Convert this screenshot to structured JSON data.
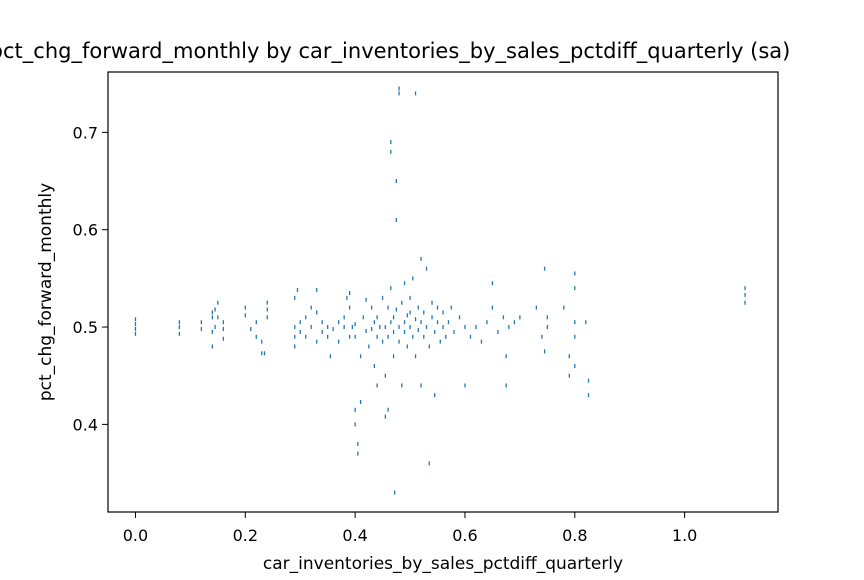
{
  "chart_data": {
    "type": "scatter",
    "title": "pct_chg_forward_monthly by car_inventories_by_sales_pctdiff_quarterly (sa)",
    "xlabel": "car_inventories_by_sales_pctdiff_quarterly",
    "ylabel": "pct_chg_forward_monthly",
    "xlim": [
      -0.05,
      1.17
    ],
    "ylim": [
      0.31,
      0.762
    ],
    "xticks": [
      0.0,
      0.2,
      0.4,
      0.6,
      0.8,
      1.0
    ],
    "xtick_labels": [
      "0.0",
      "0.2",
      "0.4",
      "0.6",
      "0.8",
      "1.0"
    ],
    "yticks": [
      0.4,
      0.5,
      0.6,
      0.7
    ],
    "ytick_labels": [
      "0.4",
      "0.5",
      "0.6",
      "0.7"
    ],
    "grid": false,
    "marker_color": "#1f77b4",
    "points": [
      [
        0.0,
        0.493
      ],
      [
        0.0,
        0.498
      ],
      [
        0.0,
        0.503
      ],
      [
        0.0,
        0.508
      ],
      [
        0.08,
        0.493
      ],
      [
        0.08,
        0.5
      ],
      [
        0.08,
        0.505
      ],
      [
        0.12,
        0.498
      ],
      [
        0.12,
        0.505
      ],
      [
        0.14,
        0.48
      ],
      [
        0.14,
        0.495
      ],
      [
        0.14,
        0.51
      ],
      [
        0.14,
        0.515
      ],
      [
        0.145,
        0.5
      ],
      [
        0.145,
        0.518
      ],
      [
        0.15,
        0.51
      ],
      [
        0.15,
        0.525
      ],
      [
        0.16,
        0.488
      ],
      [
        0.16,
        0.498
      ],
      [
        0.16,
        0.505
      ],
      [
        0.2,
        0.512
      ],
      [
        0.2,
        0.52
      ],
      [
        0.21,
        0.498
      ],
      [
        0.22,
        0.49
      ],
      [
        0.22,
        0.505
      ],
      [
        0.23,
        0.473
      ],
      [
        0.23,
        0.485
      ],
      [
        0.235,
        0.473
      ],
      [
        0.24,
        0.51
      ],
      [
        0.24,
        0.518
      ],
      [
        0.24,
        0.525
      ],
      [
        0.29,
        0.48
      ],
      [
        0.29,
        0.49
      ],
      [
        0.29,
        0.5
      ],
      [
        0.29,
        0.53
      ],
      [
        0.295,
        0.538
      ],
      [
        0.3,
        0.495
      ],
      [
        0.3,
        0.505
      ],
      [
        0.31,
        0.49
      ],
      [
        0.31,
        0.51
      ],
      [
        0.32,
        0.5
      ],
      [
        0.32,
        0.52
      ],
      [
        0.33,
        0.485
      ],
      [
        0.33,
        0.515
      ],
      [
        0.33,
        0.538
      ],
      [
        0.34,
        0.495
      ],
      [
        0.34,
        0.505
      ],
      [
        0.35,
        0.49
      ],
      [
        0.35,
        0.5
      ],
      [
        0.355,
        0.47
      ],
      [
        0.36,
        0.498
      ],
      [
        0.37,
        0.485
      ],
      [
        0.37,
        0.505
      ],
      [
        0.38,
        0.5
      ],
      [
        0.38,
        0.51
      ],
      [
        0.385,
        0.53
      ],
      [
        0.39,
        0.49
      ],
      [
        0.39,
        0.52
      ],
      [
        0.39,
        0.535
      ],
      [
        0.395,
        0.5
      ],
      [
        0.4,
        0.49
      ],
      [
        0.4,
        0.503
      ],
      [
        0.4,
        0.415
      ],
      [
        0.4,
        0.4
      ],
      [
        0.405,
        0.37
      ],
      [
        0.405,
        0.38
      ],
      [
        0.41,
        0.423
      ],
      [
        0.41,
        0.47
      ],
      [
        0.415,
        0.51
      ],
      [
        0.42,
        0.496
      ],
      [
        0.42,
        0.528
      ],
      [
        0.425,
        0.48
      ],
      [
        0.43,
        0.498
      ],
      [
        0.43,
        0.52
      ],
      [
        0.435,
        0.46
      ],
      [
        0.435,
        0.505
      ],
      [
        0.44,
        0.44
      ],
      [
        0.44,
        0.49
      ],
      [
        0.44,
        0.51
      ],
      [
        0.445,
        0.5
      ],
      [
        0.45,
        0.485
      ],
      [
        0.45,
        0.53
      ],
      [
        0.455,
        0.408
      ],
      [
        0.455,
        0.45
      ],
      [
        0.455,
        0.5
      ],
      [
        0.46,
        0.49
      ],
      [
        0.46,
        0.52
      ],
      [
        0.46,
        0.415
      ],
      [
        0.465,
        0.505
      ],
      [
        0.465,
        0.54
      ],
      [
        0.47,
        0.495
      ],
      [
        0.47,
        0.51
      ],
      [
        0.47,
        0.47
      ],
      [
        0.472,
        0.33
      ],
      [
        0.475,
        0.518
      ],
      [
        0.475,
        0.65
      ],
      [
        0.475,
        0.61
      ],
      [
        0.465,
        0.68
      ],
      [
        0.465,
        0.69
      ],
      [
        0.48,
        0.74
      ],
      [
        0.48,
        0.745
      ],
      [
        0.48,
        0.5
      ],
      [
        0.48,
        0.485
      ],
      [
        0.485,
        0.525
      ],
      [
        0.485,
        0.44
      ],
      [
        0.49,
        0.505
      ],
      [
        0.49,
        0.495
      ],
      [
        0.49,
        0.545
      ],
      [
        0.495,
        0.512
      ],
      [
        0.495,
        0.48
      ],
      [
        0.5,
        0.5
      ],
      [
        0.5,
        0.515
      ],
      [
        0.5,
        0.53
      ],
      [
        0.505,
        0.49
      ],
      [
        0.505,
        0.55
      ],
      [
        0.51,
        0.74
      ],
      [
        0.51,
        0.508
      ],
      [
        0.51,
        0.47
      ],
      [
        0.515,
        0.52
      ],
      [
        0.515,
        0.497
      ],
      [
        0.52,
        0.505
      ],
      [
        0.52,
        0.57
      ],
      [
        0.52,
        0.44
      ],
      [
        0.525,
        0.49
      ],
      [
        0.525,
        0.515
      ],
      [
        0.53,
        0.5
      ],
      [
        0.53,
        0.56
      ],
      [
        0.535,
        0.48
      ],
      [
        0.535,
        0.36
      ],
      [
        0.54,
        0.51
      ],
      [
        0.54,
        0.525
      ],
      [
        0.545,
        0.495
      ],
      [
        0.545,
        0.43
      ],
      [
        0.55,
        0.505
      ],
      [
        0.55,
        0.52
      ],
      [
        0.555,
        0.485
      ],
      [
        0.56,
        0.5
      ],
      [
        0.56,
        0.515
      ],
      [
        0.565,
        0.49
      ],
      [
        0.57,
        0.505
      ],
      [
        0.575,
        0.52
      ],
      [
        0.58,
        0.495
      ],
      [
        0.59,
        0.51
      ],
      [
        0.6,
        0.44
      ],
      [
        0.6,
        0.5
      ],
      [
        0.61,
        0.49
      ],
      [
        0.62,
        0.5
      ],
      [
        0.63,
        0.485
      ],
      [
        0.64,
        0.505
      ],
      [
        0.65,
        0.52
      ],
      [
        0.65,
        0.545
      ],
      [
        0.66,
        0.495
      ],
      [
        0.67,
        0.51
      ],
      [
        0.675,
        0.44
      ],
      [
        0.675,
        0.47
      ],
      [
        0.68,
        0.5
      ],
      [
        0.69,
        0.505
      ],
      [
        0.7,
        0.51
      ],
      [
        0.73,
        0.52
      ],
      [
        0.74,
        0.49
      ],
      [
        0.745,
        0.475
      ],
      [
        0.745,
        0.56
      ],
      [
        0.75,
        0.5
      ],
      [
        0.75,
        0.51
      ],
      [
        0.78,
        0.52
      ],
      [
        0.79,
        0.45
      ],
      [
        0.79,
        0.47
      ],
      [
        0.8,
        0.46
      ],
      [
        0.8,
        0.555
      ],
      [
        0.8,
        0.54
      ],
      [
        0.8,
        0.505
      ],
      [
        0.8,
        0.49
      ],
      [
        0.82,
        0.505
      ],
      [
        0.825,
        0.43
      ],
      [
        0.825,
        0.445
      ],
      [
        1.11,
        0.525
      ],
      [
        1.11,
        0.533
      ],
      [
        1.11,
        0.54
      ]
    ]
  }
}
